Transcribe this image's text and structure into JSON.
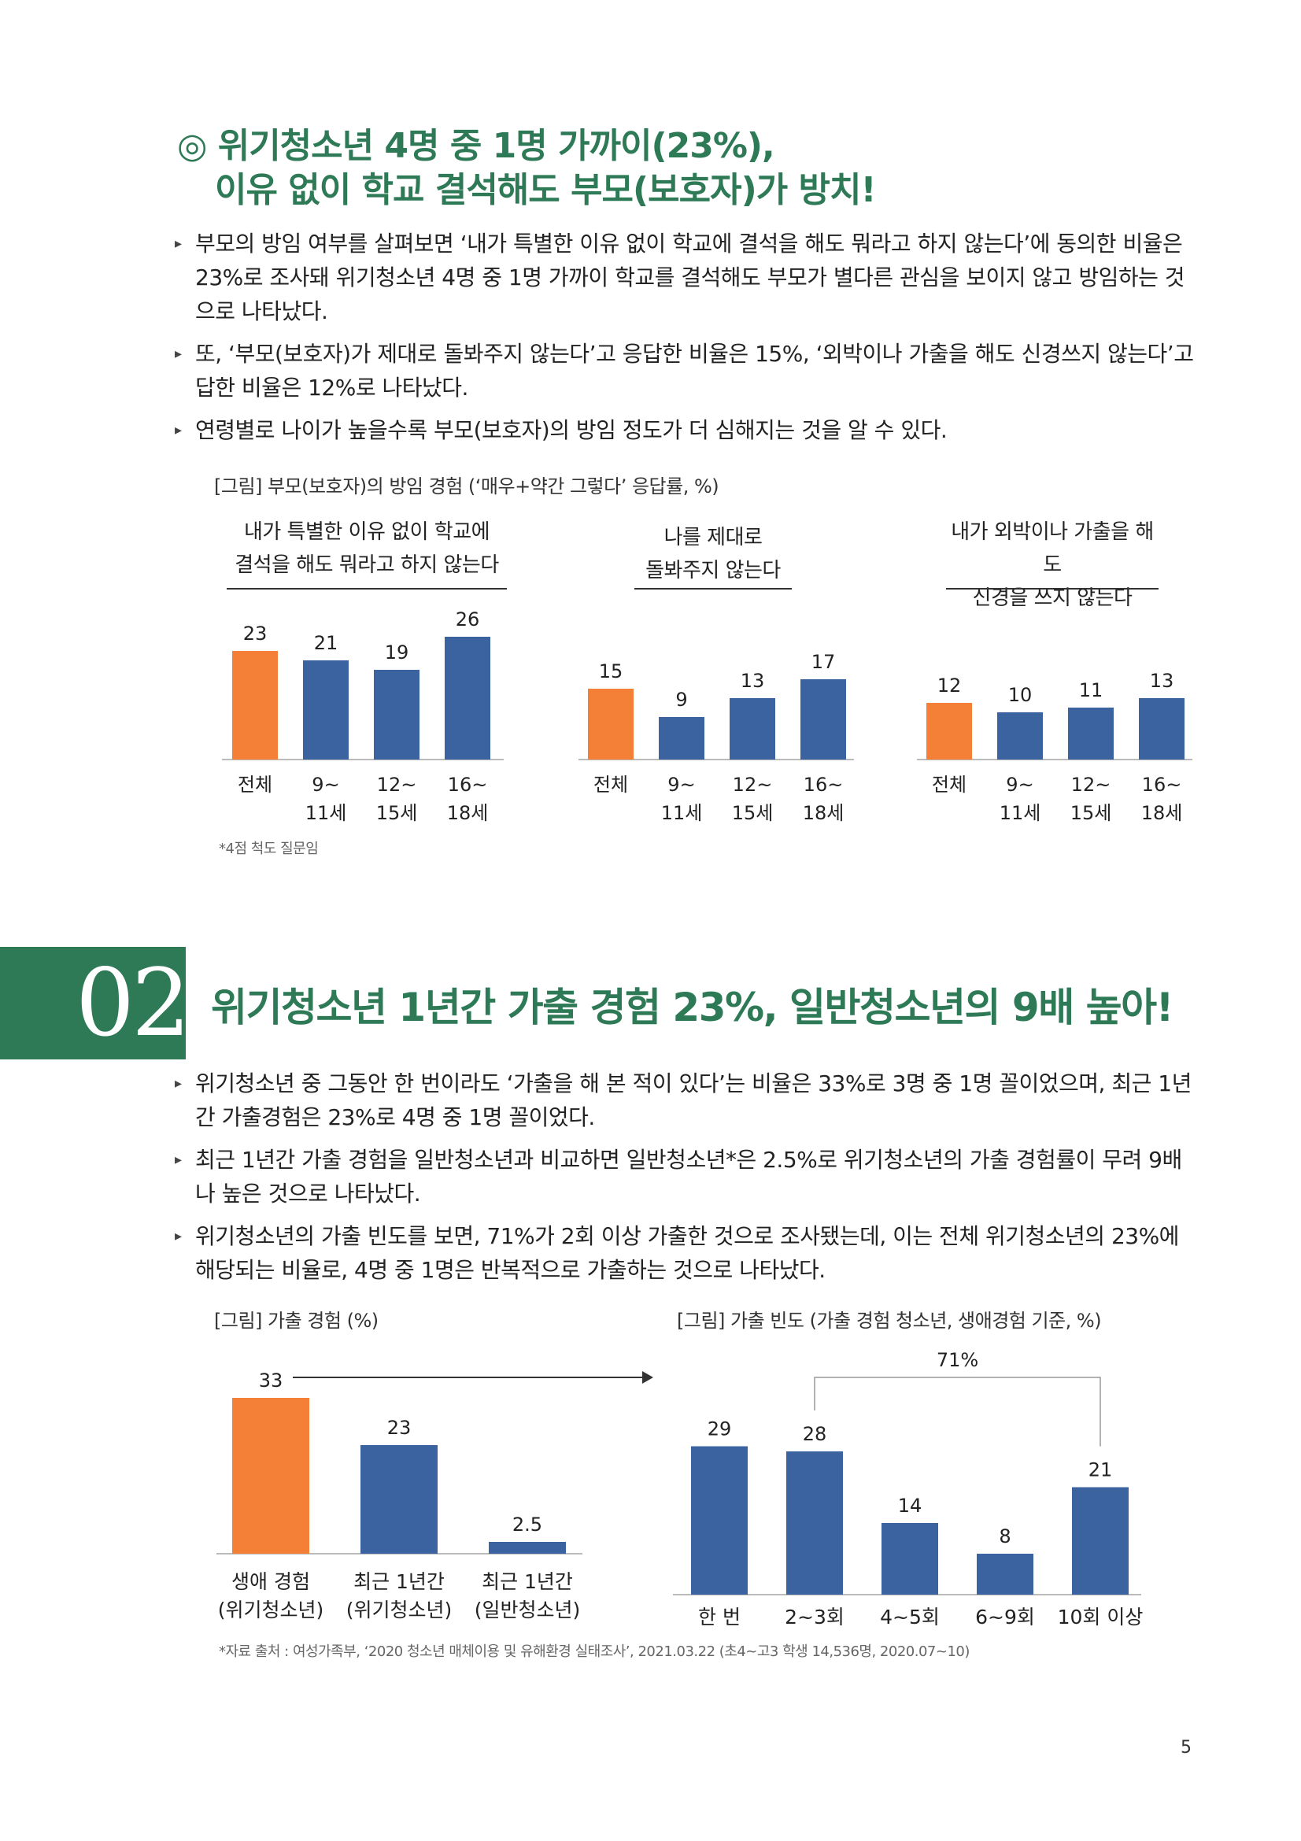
{
  "section1": {
    "title_line1": "◎ 위기청소년 4명 중 1명 가까이(23%),",
    "title_line2": "이유 없이 학교 결석해도 부모(보호자)가 방치!",
    "bullets": [
      "부모의 방임 여부를 살펴보면 ‘내가 특별한 이유 없이 학교에 결석을 해도 뭐라고 하지 않는다’에 동의한 비율은 23%로 조사돼 위기청소년 4명 중 1명 가까이 학교를 결석해도 부모가 별다른 관심을 보이지 않고 방임하는 것으로 나타났다.",
      "또, ‘부모(보호자)가 제대로 돌봐주지 않는다’고 응답한 비율은 15%, ‘외박이나 가출을 해도 신경쓰지 않는다’고 답한 비율은 12%로 나타났다.",
      "연령별로 나이가 높을수록 부모(보호자)의 방임 정도가 더 심해지는 것을 알 수 있다."
    ],
    "figure_caption": "[그림] 부모(보호자)의 방임 경험 (‘매우+약간 그렇다’ 응답률, %)",
    "footnote": "*4점 척도 질문임"
  },
  "chart_data": [
    {
      "type": "bar",
      "title_lines": [
        "내가 특별한 이유 없이 학교에",
        "결석을 해도 뭐라고 하지 않는다"
      ],
      "categories": [
        [
          "전체"
        ],
        [
          "9~",
          "11세"
        ],
        [
          "12~",
          "15세"
        ],
        [
          "16~",
          "18세"
        ]
      ],
      "values": [
        23,
        21,
        19,
        26
      ],
      "colors": [
        "#f47f36",
        "#3a63a0",
        "#3a63a0",
        "#3a63a0"
      ]
    },
    {
      "type": "bar",
      "title_lines": [
        "나를 제대로",
        "돌봐주지 않는다"
      ],
      "categories": [
        [
          "전체"
        ],
        [
          "9~",
          "11세"
        ],
        [
          "12~",
          "15세"
        ],
        [
          "16~",
          "18세"
        ]
      ],
      "values": [
        15,
        9,
        13,
        17
      ],
      "colors": [
        "#f47f36",
        "#3a63a0",
        "#3a63a0",
        "#3a63a0"
      ]
    },
    {
      "type": "bar",
      "title_lines": [
        "내가 외박이나 가출을 해도",
        "신경을 쓰지 않는다"
      ],
      "categories": [
        [
          "전체"
        ],
        [
          "9~",
          "11세"
        ],
        [
          "12~",
          "15세"
        ],
        [
          "16~",
          "18세"
        ]
      ],
      "values": [
        12,
        10,
        11,
        13
      ],
      "colors": [
        "#f47f36",
        "#3a63a0",
        "#3a63a0",
        "#3a63a0"
      ]
    },
    {
      "type": "bar",
      "caption": "[그림] 가출 경험 (%)",
      "categories": [
        [
          "생애 경험",
          "(위기청소년)"
        ],
        [
          "최근 1년간",
          "(위기청소년)"
        ],
        [
          "최근 1년간",
          "(일반청소년)"
        ]
      ],
      "values": [
        33,
        23,
        2.5
      ],
      "colors": [
        "#f47f36",
        "#3a63a0",
        "#3a63a0"
      ]
    },
    {
      "type": "bar",
      "caption": "[그림] 가출 빈도 (가출 경험 청소년, 생애경험 기준, %)",
      "categories": [
        [
          "한 번"
        ],
        [
          "2~3회"
        ],
        [
          "4~5회"
        ],
        [
          "6~9회"
        ],
        [
          "10회 이상"
        ]
      ],
      "values": [
        29,
        28,
        14,
        8,
        21
      ],
      "colors": [
        "#3a63a0",
        "#3a63a0",
        "#3a63a0",
        "#3a63a0",
        "#3a63a0"
      ],
      "bracket_label": "71%"
    }
  ],
  "section2": {
    "number": "02",
    "title": "위기청소년 1년간 가출 경험 23%, 일반청소년의 9배 높아!",
    "bullets": [
      "위기청소년 중 그동안 한 번이라도 ‘가출을 해 본 적이 있다’는 비율은 33%로 3명 중 1명 꼴이었으며, 최근 1년간 가출경험은 23%로 4명 중 1명 꼴이었다.",
      "최근 1년간 가출 경험을 일반청소년과 비교하면 일반청소년*은 2.5%로 위기청소년의 가출 경험률이 무려 9배나 높은 것으로 나타났다.",
      "위기청소년의 가출 빈도를 보면, 71%가 2회 이상 가출한 것으로 조사됐는데, 이는 전체 위기청소년의 23%에 해당되는 비율로, 4명 중 1명은 반복적으로 가출하는 것으로 나타났다."
    ],
    "source": "*자료 출처 : 여성가족부, ‘2020 청소년 매체이용 및 유해환경 실태조사’, 2021.03.22 (초4~고3 학생 14,536명, 2020.07~10)"
  },
  "page_number": "5"
}
